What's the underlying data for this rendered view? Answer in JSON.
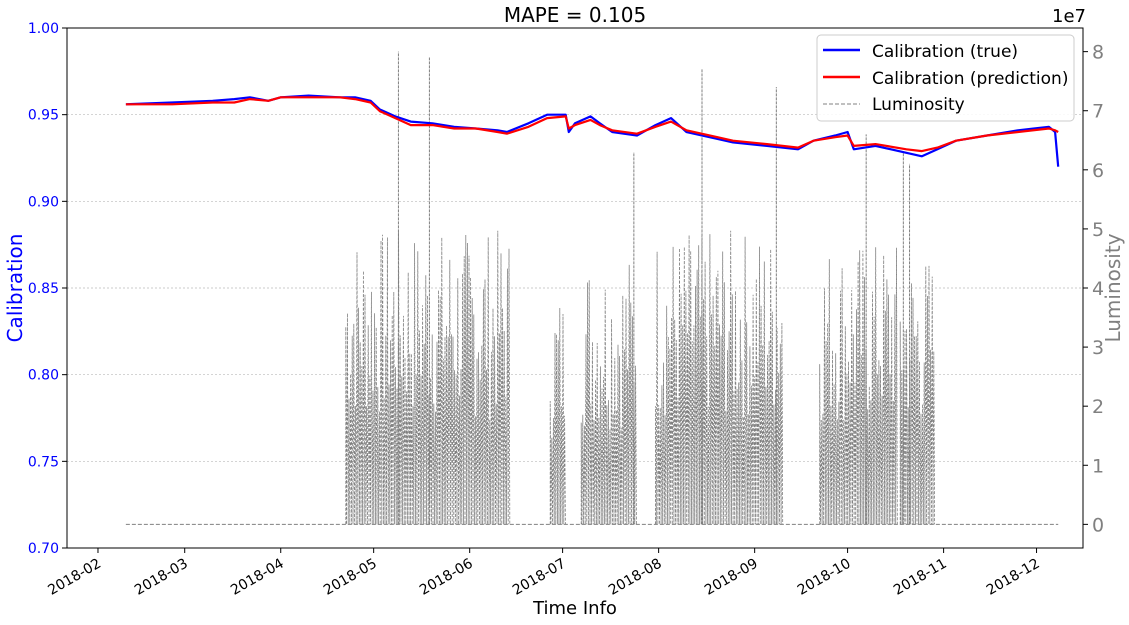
{
  "chart_data": {
    "type": "line",
    "title": "MAPE = 0.105",
    "xlabel": "Time Info",
    "ylabel_left": "Calibration",
    "ylabel_right": "Luminosity",
    "right_axis_multiplier": "1e7",
    "x_ticks": [
      "2018-02",
      "2018-03",
      "2018-04",
      "2018-05",
      "2018-06",
      "2018-07",
      "2018-08",
      "2018-09",
      "2018-10",
      "2018-11",
      "2018-12"
    ],
    "y_left_ticks": [
      "0.70",
      "0.75",
      "0.80",
      "0.85",
      "0.90",
      "0.95",
      "1.00"
    ],
    "y_right_ticks": [
      "0",
      "1",
      "2",
      "3",
      "4",
      "5",
      "6",
      "7",
      "8"
    ],
    "ylim_left": [
      0.7,
      1.0
    ],
    "ylim_right": [
      -0.4,
      8.4
    ],
    "xlim": [
      "2018-01-22",
      "2018-12-16"
    ],
    "grid": "horizontal",
    "legend_position": "top-right",
    "colors": {
      "true": "#0000ff",
      "prediction": "#ff0000",
      "luminosity": "#808080",
      "left_axis": "#0000ff",
      "right_axis": "#808080"
    },
    "series": [
      {
        "name": "Calibration (true)",
        "axis": "left",
        "points": [
          [
            "2018-02-10",
            0.956
          ],
          [
            "2018-02-25",
            0.957
          ],
          [
            "2018-03-10",
            0.958
          ],
          [
            "2018-03-17",
            0.959
          ],
          [
            "2018-03-22",
            0.96
          ],
          [
            "2018-03-28",
            0.958
          ],
          [
            "2018-04-01",
            0.96
          ],
          [
            "2018-04-10",
            0.961
          ],
          [
            "2018-04-20",
            0.96
          ],
          [
            "2018-04-25",
            0.96
          ],
          [
            "2018-04-30",
            0.958
          ],
          [
            "2018-05-03",
            0.953
          ],
          [
            "2018-05-08",
            0.949
          ],
          [
            "2018-05-13",
            0.946
          ],
          [
            "2018-05-20",
            0.945
          ],
          [
            "2018-05-27",
            0.943
          ],
          [
            "2018-06-03",
            0.942
          ],
          [
            "2018-06-10",
            0.941
          ],
          [
            "2018-06-13",
            0.94
          ],
          [
            "2018-06-20",
            0.945
          ],
          [
            "2018-06-26",
            0.95
          ],
          [
            "2018-07-02",
            0.95
          ],
          [
            "2018-07-03",
            0.94
          ],
          [
            "2018-07-05",
            0.945
          ],
          [
            "2018-07-10",
            0.949
          ],
          [
            "2018-07-13",
            0.945
          ],
          [
            "2018-07-17",
            0.94
          ],
          [
            "2018-07-25",
            0.938
          ],
          [
            "2018-07-31",
            0.944
          ],
          [
            "2018-08-05",
            0.948
          ],
          [
            "2018-08-10",
            0.94
          ],
          [
            "2018-08-20",
            0.936
          ],
          [
            "2018-08-25",
            0.934
          ],
          [
            "2018-09-05",
            0.932
          ],
          [
            "2018-09-15",
            0.93
          ],
          [
            "2018-09-20",
            0.935
          ],
          [
            "2018-09-27",
            0.938
          ],
          [
            "2018-10-01",
            0.94
          ],
          [
            "2018-10-03",
            0.93
          ],
          [
            "2018-10-10",
            0.932
          ],
          [
            "2018-10-20",
            0.928
          ],
          [
            "2018-10-25",
            0.926
          ],
          [
            "2018-10-30",
            0.93
          ],
          [
            "2018-11-05",
            0.935
          ],
          [
            "2018-11-15",
            0.938
          ],
          [
            "2018-11-25",
            0.941
          ],
          [
            "2018-12-05",
            0.943
          ],
          [
            "2018-12-07",
            0.94
          ],
          [
            "2018-12-08",
            0.92
          ]
        ]
      },
      {
        "name": "Calibration (prediction)",
        "axis": "left",
        "points": [
          [
            "2018-02-10",
            0.956
          ],
          [
            "2018-02-25",
            0.956
          ],
          [
            "2018-03-10",
            0.957
          ],
          [
            "2018-03-17",
            0.957
          ],
          [
            "2018-03-22",
            0.959
          ],
          [
            "2018-03-28",
            0.958
          ],
          [
            "2018-04-01",
            0.96
          ],
          [
            "2018-04-10",
            0.96
          ],
          [
            "2018-04-20",
            0.96
          ],
          [
            "2018-04-25",
            0.959
          ],
          [
            "2018-04-30",
            0.957
          ],
          [
            "2018-05-03",
            0.952
          ],
          [
            "2018-05-08",
            0.948
          ],
          [
            "2018-05-13",
            0.944
          ],
          [
            "2018-05-20",
            0.944
          ],
          [
            "2018-05-27",
            0.942
          ],
          [
            "2018-06-03",
            0.942
          ],
          [
            "2018-06-10",
            0.94
          ],
          [
            "2018-06-13",
            0.939
          ],
          [
            "2018-06-20",
            0.943
          ],
          [
            "2018-06-26",
            0.948
          ],
          [
            "2018-07-02",
            0.949
          ],
          [
            "2018-07-03",
            0.942
          ],
          [
            "2018-07-05",
            0.944
          ],
          [
            "2018-07-10",
            0.947
          ],
          [
            "2018-07-13",
            0.944
          ],
          [
            "2018-07-17",
            0.941
          ],
          [
            "2018-07-25",
            0.939
          ],
          [
            "2018-07-31",
            0.943
          ],
          [
            "2018-08-05",
            0.946
          ],
          [
            "2018-08-10",
            0.941
          ],
          [
            "2018-08-20",
            0.937
          ],
          [
            "2018-08-25",
            0.935
          ],
          [
            "2018-09-05",
            0.933
          ],
          [
            "2018-09-15",
            0.931
          ],
          [
            "2018-09-20",
            0.935
          ],
          [
            "2018-09-27",
            0.937
          ],
          [
            "2018-10-01",
            0.938
          ],
          [
            "2018-10-03",
            0.932
          ],
          [
            "2018-10-10",
            0.933
          ],
          [
            "2018-10-20",
            0.93
          ],
          [
            "2018-10-25",
            0.929
          ],
          [
            "2018-10-30",
            0.931
          ],
          [
            "2018-11-05",
            0.935
          ],
          [
            "2018-11-15",
            0.938
          ],
          [
            "2018-11-25",
            0.94
          ],
          [
            "2018-12-05",
            0.942
          ],
          [
            "2018-12-07",
            0.941
          ],
          [
            "2018-12-08",
            0.94
          ]
        ]
      },
      {
        "name": "Luminosity",
        "axis": "right",
        "style": "dashed",
        "baseline": 0.0,
        "active_periods": [
          {
            "start": "2018-04-22",
            "end": "2018-06-14",
            "peak": 5.0
          },
          {
            "start": "2018-06-27",
            "end": "2018-07-02",
            "peak": 4.0
          },
          {
            "start": "2018-07-07",
            "end": "2018-07-25",
            "peak": 4.6
          },
          {
            "start": "2018-07-31",
            "end": "2018-09-10",
            "peak": 5.0
          },
          {
            "start": "2018-09-22",
            "end": "2018-10-17",
            "peak": 4.8
          },
          {
            "start": "2018-10-18",
            "end": "2018-10-29",
            "peak": 4.6
          }
        ],
        "spikes": [
          {
            "date": "2018-05-09",
            "value": 8.0
          },
          {
            "date": "2018-05-19",
            "value": 7.9
          },
          {
            "date": "2018-07-24",
            "value": 6.3
          },
          {
            "date": "2018-08-15",
            "value": 7.7
          },
          {
            "date": "2018-09-08",
            "value": 7.4
          },
          {
            "date": "2018-10-07",
            "value": 6.6
          },
          {
            "date": "2018-10-19",
            "value": 6.3
          },
          {
            "date": "2018-10-21",
            "value": 6.1
          }
        ]
      }
    ]
  }
}
